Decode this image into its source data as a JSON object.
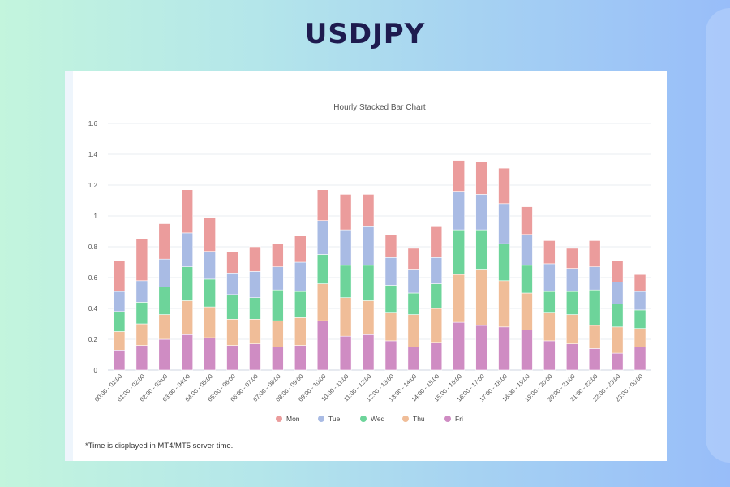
{
  "page": {
    "title": "USDJPY"
  },
  "footnote": "*Time is displayed in MT4/MT5 server time.",
  "chart_data": {
    "type": "bar",
    "stacked": true,
    "title": "Hourly Stacked Bar Chart",
    "xlabel": "",
    "ylabel": "",
    "ylim": [
      0,
      1.6
    ],
    "yticks": [
      "0",
      "0.2",
      "0.4",
      "0.6",
      "0.8",
      "1",
      "1.2",
      "1.4",
      "1.6"
    ],
    "grid": true,
    "legend_position": "bottom",
    "categories": [
      "00:00 - 01:00",
      "01:00 - 02:00",
      "02:00 - 03:00",
      "03:00 - 04:00",
      "04:00 - 05:00",
      "05:00 - 06:00",
      "06:00 - 07:00",
      "07:00 - 08:00",
      "08:00 - 09:00",
      "09:00 - 10:00",
      "10:00 - 11:00",
      "11:00 - 12:00",
      "12:00 - 13:00",
      "13:00 - 14:00",
      "14:00 - 15:00",
      "15:00 - 16:00",
      "16:00 - 17:00",
      "17:00 - 18:00",
      "18:00 - 19:00",
      "19:00 - 20:00",
      "20:00 - 21:00",
      "21:00 - 22:00",
      "22:00 - 23:00",
      "23:00 - 00:00"
    ],
    "series": [
      {
        "name": "Fri",
        "color": "#cf8cc3",
        "values": [
          0.13,
          0.16,
          0.2,
          0.23,
          0.21,
          0.16,
          0.17,
          0.15,
          0.16,
          0.32,
          0.22,
          0.23,
          0.19,
          0.15,
          0.18,
          0.31,
          0.29,
          0.28,
          0.26,
          0.19,
          0.17,
          0.14,
          0.11,
          0.15
        ]
      },
      {
        "name": "Thu",
        "color": "#f0bd98",
        "values": [
          0.12,
          0.14,
          0.16,
          0.22,
          0.2,
          0.17,
          0.16,
          0.17,
          0.18,
          0.24,
          0.25,
          0.22,
          0.18,
          0.21,
          0.22,
          0.31,
          0.36,
          0.3,
          0.24,
          0.18,
          0.19,
          0.15,
          0.17,
          0.12
        ]
      },
      {
        "name": "Wed",
        "color": "#6dd49a",
        "values": [
          0.13,
          0.14,
          0.18,
          0.22,
          0.18,
          0.16,
          0.14,
          0.2,
          0.17,
          0.19,
          0.21,
          0.23,
          0.18,
          0.14,
          0.16,
          0.29,
          0.26,
          0.24,
          0.18,
          0.14,
          0.15,
          0.23,
          0.15,
          0.12
        ]
      },
      {
        "name": "Tue",
        "color": "#a9bbe4",
        "values": [
          0.13,
          0.14,
          0.18,
          0.22,
          0.18,
          0.14,
          0.17,
          0.15,
          0.19,
          0.22,
          0.23,
          0.25,
          0.18,
          0.15,
          0.17,
          0.25,
          0.23,
          0.26,
          0.2,
          0.18,
          0.15,
          0.15,
          0.14,
          0.12
        ]
      },
      {
        "name": "Mon",
        "color": "#eb9c9c",
        "values": [
          0.2,
          0.27,
          0.23,
          0.28,
          0.22,
          0.14,
          0.16,
          0.15,
          0.17,
          0.2,
          0.23,
          0.21,
          0.15,
          0.14,
          0.2,
          0.2,
          0.21,
          0.23,
          0.18,
          0.15,
          0.13,
          0.17,
          0.14,
          0.11
        ]
      }
    ],
    "legend": [
      "Mon",
      "Tue",
      "Wed",
      "Thu",
      "Fri"
    ]
  }
}
